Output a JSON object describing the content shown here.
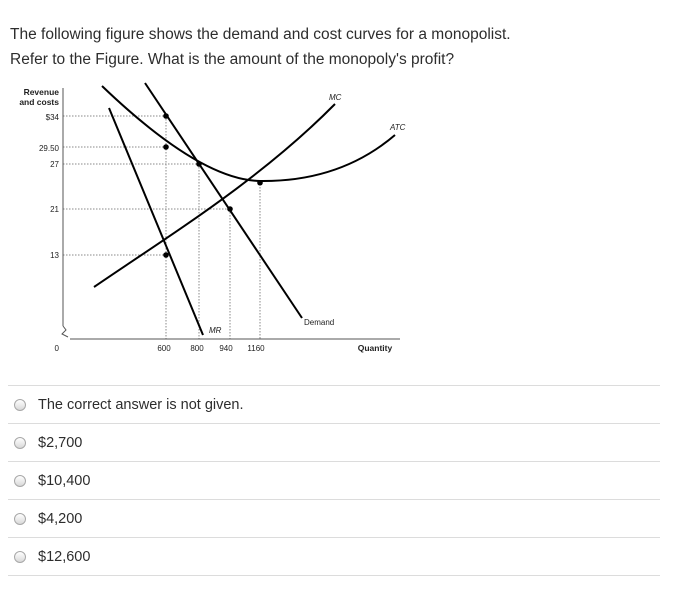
{
  "question": {
    "line1": "The following figure shows the demand and cost curves for a monopolist.",
    "line2": "Refer to the Figure. What is the amount of the monopoly's profit?"
  },
  "chart_data": {
    "type": "line",
    "ylabel": [
      "Revenue",
      "and costs"
    ],
    "xlabel": "Quantity",
    "y_ticks": [
      "$34",
      "29.50",
      "27",
      "21",
      "13"
    ],
    "y_tick_values": [
      34,
      29.5,
      27,
      21,
      13
    ],
    "origin_label": "0",
    "x_ticks": [
      "600",
      "800",
      "940",
      "1160"
    ],
    "x_tick_values": [
      600,
      800,
      940,
      1160
    ],
    "curve_labels": {
      "mc": "MC",
      "atc": "ATC",
      "demand": "Demand",
      "mr": "MR"
    },
    "key_points": [
      {
        "x": 600,
        "y": 34
      },
      {
        "x": 600,
        "y": 29.5
      },
      {
        "x": 600,
        "y": 13
      },
      {
        "x": 800,
        "y": 27
      },
      {
        "x": 940,
        "y": 21
      },
      {
        "x": 1160,
        "y": 24.5
      }
    ],
    "grid": false
  },
  "options": [
    {
      "label": "The correct answer is not given."
    },
    {
      "label": "$2,700"
    },
    {
      "label": "$10,400"
    },
    {
      "label": "$4,200"
    },
    {
      "label": "$12,600"
    }
  ]
}
